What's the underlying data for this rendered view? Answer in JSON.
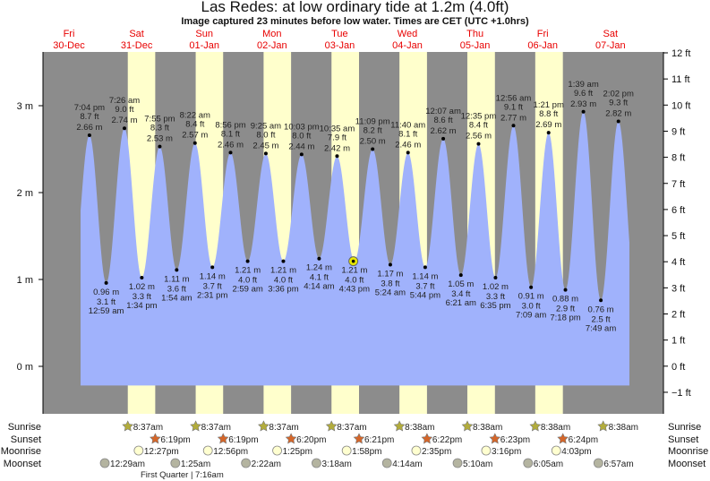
{
  "title": "Las Redes: at low  ordinary tide at 1.2m (4.0ft)",
  "subtitle": "Image captured 23 minutes before low water. Times are CET (UTC +1.0hrs)",
  "colors": {
    "night": "#8c8c8c",
    "day": "#ffffcc",
    "water": "#a0b2fc",
    "day_label": "#e80000",
    "sunrise": "#b2ac3c",
    "sunset": "#d4662a",
    "moonrise": "#ffffd0",
    "moonset": "#b4b4a0",
    "now_marker": "#e8e800"
  },
  "chart_data": {
    "type": "area",
    "title": "Las Redes: at low  ordinary tide at 1.2m (4.0ft)",
    "days": [
      {
        "weekday": "Fri",
        "date": "30-Dec"
      },
      {
        "weekday": "Sat",
        "date": "31-Dec"
      },
      {
        "weekday": "Sun",
        "date": "01-Jan"
      },
      {
        "weekday": "Mon",
        "date": "02-Jan"
      },
      {
        "weekday": "Tue",
        "date": "03-Jan"
      },
      {
        "weekday": "Wed",
        "date": "04-Jan"
      },
      {
        "weekday": "Thu",
        "date": "05-Jan"
      },
      {
        "weekday": "Fri",
        "date": "06-Jan"
      },
      {
        "weekday": "Sat",
        "date": "07-Jan"
      }
    ],
    "y_left": {
      "unit": "m",
      "ticks": [
        "3 m",
        "2 m",
        "1 m",
        "0 m"
      ],
      "values": [
        3,
        2,
        1,
        0
      ]
    },
    "y_right": {
      "unit": "ft",
      "ticks": [
        "12 ft",
        "11 ft",
        "10 ft",
        "9 ft",
        "8 ft",
        "7 ft",
        "6 ft",
        "5 ft",
        "4 ft",
        "3 ft",
        "2 ft",
        "1 ft",
        "0 ft",
        "−1 ft"
      ],
      "values": [
        12,
        11,
        10,
        9,
        8,
        7,
        6,
        5,
        4,
        3,
        2,
        1,
        0,
        -1
      ]
    },
    "extremes": [
      {
        "type": "high",
        "date": "30-Dec",
        "time": "7:04 pm",
        "ft": "8.7 ft",
        "m": "2.66 m",
        "value": 2.66
      },
      {
        "type": "low",
        "date": "31-Dec",
        "time": "12:59 am",
        "ft": "3.1 ft",
        "m": "0.96 m",
        "value": 0.96
      },
      {
        "type": "high",
        "date": "31-Dec",
        "time": "7:26 am",
        "ft": "9.0 ft",
        "m": "2.74 m",
        "value": 2.74
      },
      {
        "type": "low",
        "date": "31-Dec",
        "time": "1:34 pm",
        "ft": "3.3 ft",
        "m": "1.02 m",
        "value": 1.02
      },
      {
        "type": "high",
        "date": "31-Dec",
        "time": "7:55 pm",
        "ft": "8.3 ft",
        "m": "2.53 m",
        "value": 2.53
      },
      {
        "type": "low",
        "date": "01-Jan",
        "time": "1:54 am",
        "ft": "3.6 ft",
        "m": "1.11 m",
        "value": 1.11
      },
      {
        "type": "high",
        "date": "01-Jan",
        "time": "8:22 am",
        "ft": "8.4 ft",
        "m": "2.57 m",
        "value": 2.57
      },
      {
        "type": "low",
        "date": "01-Jan",
        "time": "2:31 pm",
        "ft": "3.7 ft",
        "m": "1.14 m",
        "value": 1.14
      },
      {
        "type": "high",
        "date": "01-Jan",
        "time": "8:56 pm",
        "ft": "8.1 ft",
        "m": "2.46 m",
        "value": 2.46
      },
      {
        "type": "low",
        "date": "02-Jan",
        "time": "2:59 am",
        "ft": "4.0 ft",
        "m": "1.21 m",
        "value": 1.21
      },
      {
        "type": "high",
        "date": "02-Jan",
        "time": "9:25 am",
        "ft": "8.0 ft",
        "m": "2.45 m",
        "value": 2.45
      },
      {
        "type": "low",
        "date": "02-Jan",
        "time": "3:36 pm",
        "ft": "4.0 ft",
        "m": "1.21 m",
        "value": 1.21
      },
      {
        "type": "high",
        "date": "02-Jan",
        "time": "10:03 pm",
        "ft": "8.0 ft",
        "m": "2.44 m",
        "value": 2.44
      },
      {
        "type": "low",
        "date": "03-Jan",
        "time": "4:14 am",
        "ft": "4.1 ft",
        "m": "1.24 m",
        "value": 1.24
      },
      {
        "type": "high",
        "date": "03-Jan",
        "time": "10:35 am",
        "ft": "7.9 ft",
        "m": "2.42 m",
        "value": 2.42
      },
      {
        "type": "low",
        "date": "03-Jan",
        "time": "4:43 pm",
        "ft": "4.0 ft",
        "m": "1.21 m",
        "value": 1.21
      },
      {
        "type": "high",
        "date": "03-Jan",
        "time": "11:09 pm",
        "ft": "8.2 ft",
        "m": "2.50 m",
        "value": 2.5
      },
      {
        "type": "low",
        "date": "04-Jan",
        "time": "5:24 am",
        "ft": "3.8 ft",
        "m": "1.17 m",
        "value": 1.17
      },
      {
        "type": "high",
        "date": "04-Jan",
        "time": "11:40 am",
        "ft": "8.1 ft",
        "m": "2.46 m",
        "value": 2.46
      },
      {
        "type": "low",
        "date": "04-Jan",
        "time": "5:44 pm",
        "ft": "3.7 ft",
        "m": "1.14 m",
        "value": 1.14
      },
      {
        "type": "high",
        "date": "05-Jan",
        "time": "12:07 am",
        "ft": "8.6 ft",
        "m": "2.62 m",
        "value": 2.62
      },
      {
        "type": "low",
        "date": "05-Jan",
        "time": "6:21 am",
        "ft": "3.4 ft",
        "m": "1.05 m",
        "value": 1.05
      },
      {
        "type": "high",
        "date": "05-Jan",
        "time": "12:35 pm",
        "ft": "8.4 ft",
        "m": "2.56 m",
        "value": 2.56
      },
      {
        "type": "low",
        "date": "05-Jan",
        "time": "6:35 pm",
        "ft": "3.3 ft",
        "m": "1.02 m",
        "value": 1.02
      },
      {
        "type": "high",
        "date": "06-Jan",
        "time": "12:56 am",
        "ft": "9.1 ft",
        "m": "2.77 m",
        "value": 2.77
      },
      {
        "type": "low",
        "date": "06-Jan",
        "time": "7:09 am",
        "ft": "3.0 ft",
        "m": "0.91 m",
        "value": 0.91
      },
      {
        "type": "high",
        "date": "06-Jan",
        "time": "1:21 pm",
        "ft": "8.8 ft",
        "m": "2.69 m",
        "value": 2.69
      },
      {
        "type": "low",
        "date": "06-Jan",
        "time": "7:18 pm",
        "ft": "2.9 ft",
        "m": "0.88 m",
        "value": 0.88
      },
      {
        "type": "high",
        "date": "07-Jan",
        "time": "1:39 am",
        "ft": "9.6 ft",
        "m": "2.93 m",
        "value": 2.93
      },
      {
        "type": "low",
        "date": "07-Jan",
        "time": "7:49 am",
        "ft": "2.5 ft",
        "m": "0.76 m",
        "value": 0.76
      },
      {
        "type": "high",
        "date": "07-Jan",
        "time": "2:02 pm",
        "ft": "9.3 ft",
        "m": "2.82 m",
        "value": 2.82
      }
    ],
    "current": {
      "date": "03-Jan",
      "time": "4:20 pm",
      "value": 1.21
    }
  },
  "astro": {
    "labels": {
      "sunrise": "Sunrise",
      "sunset": "Sunset",
      "moonrise": "Moonrise",
      "moonset": "Moonset"
    },
    "sunrise": [
      {
        "date": "31-Dec",
        "time": "8:37am"
      },
      {
        "date": "01-Jan",
        "time": "8:37am"
      },
      {
        "date": "02-Jan",
        "time": "8:37am"
      },
      {
        "date": "03-Jan",
        "time": "8:37am"
      },
      {
        "date": "04-Jan",
        "time": "8:38am"
      },
      {
        "date": "05-Jan",
        "time": "8:38am"
      },
      {
        "date": "06-Jan",
        "time": "8:38am"
      },
      {
        "date": "07-Jan",
        "time": "8:38am"
      }
    ],
    "sunset": [
      {
        "date": "31-Dec",
        "time": "6:19pm"
      },
      {
        "date": "01-Jan",
        "time": "6:19pm"
      },
      {
        "date": "02-Jan",
        "time": "6:20pm"
      },
      {
        "date": "03-Jan",
        "time": "6:21pm"
      },
      {
        "date": "04-Jan",
        "time": "6:22pm"
      },
      {
        "date": "05-Jan",
        "time": "6:23pm"
      },
      {
        "date": "06-Jan",
        "time": "6:24pm"
      }
    ],
    "moonrise": [
      {
        "date": "31-Dec",
        "time": "12:27pm"
      },
      {
        "date": "01-Jan",
        "time": "12:56pm"
      },
      {
        "date": "02-Jan",
        "time": "1:25pm"
      },
      {
        "date": "03-Jan",
        "time": "1:58pm"
      },
      {
        "date": "04-Jan",
        "time": "2:35pm"
      },
      {
        "date": "05-Jan",
        "time": "3:16pm"
      },
      {
        "date": "06-Jan",
        "time": "4:03pm"
      }
    ],
    "moonset": [
      {
        "date": "31-Dec",
        "time": "12:29am"
      },
      {
        "date": "01-Jan",
        "time": "1:25am"
      },
      {
        "date": "02-Jan",
        "time": "2:22am"
      },
      {
        "date": "03-Jan",
        "time": "3:18am"
      },
      {
        "date": "04-Jan",
        "time": "4:14am"
      },
      {
        "date": "05-Jan",
        "time": "5:10am"
      },
      {
        "date": "06-Jan",
        "time": "6:05am"
      },
      {
        "date": "07-Jan",
        "time": "6:57am"
      }
    ],
    "moon_phase": "First Quarter | 7:16am"
  }
}
